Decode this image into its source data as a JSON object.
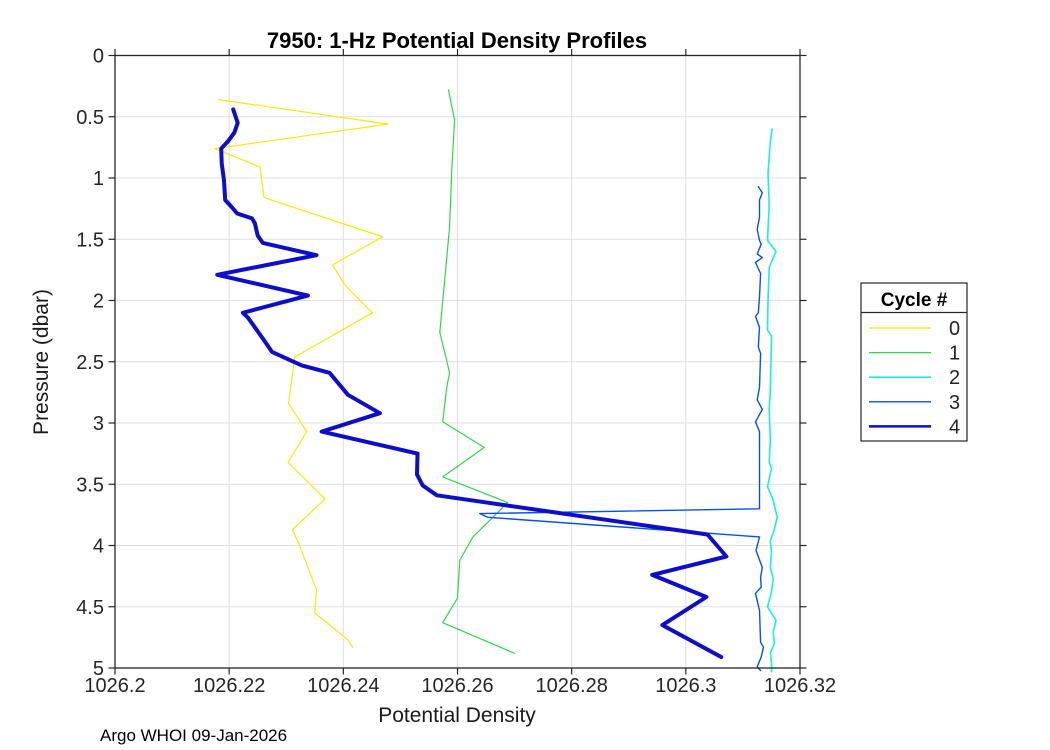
{
  "figure": {
    "footer": "Argo WHOI 09-Jan-2026"
  },
  "chart_data": {
    "type": "line",
    "title": "7950: 1-Hz Potential Density Profiles",
    "xlabel": "Potential Density",
    "ylabel": "Pressure (dbar)",
    "xlim": [
      1026.2,
      1026.32
    ],
    "ylim": [
      0,
      5
    ],
    "y_axis_reversed": true,
    "grid": true,
    "grid_color": "#e0e0e0",
    "axis_color": "#262626",
    "x_ticks": [
      {
        "value": 1026.2,
        "label": "1026.2"
      },
      {
        "value": 1026.22,
        "label": "1026.22"
      },
      {
        "value": 1026.24,
        "label": "1026.24"
      },
      {
        "value": 1026.26,
        "label": "1026.26"
      },
      {
        "value": 1026.28,
        "label": "1026.28"
      },
      {
        "value": 1026.3,
        "label": "1026.3"
      },
      {
        "value": 1026.32,
        "label": "1026.32"
      }
    ],
    "y_ticks": [
      {
        "value": 0,
        "label": "0"
      },
      {
        "value": 0.5,
        "label": "0.5"
      },
      {
        "value": 1,
        "label": "1"
      },
      {
        "value": 1.5,
        "label": "1.5"
      },
      {
        "value": 2,
        "label": "2"
      },
      {
        "value": 2.5,
        "label": "2.5"
      },
      {
        "value": 3,
        "label": "3"
      },
      {
        "value": 3.5,
        "label": "3.5"
      },
      {
        "value": 4,
        "label": "4"
      },
      {
        "value": 4.5,
        "label": "4.5"
      },
      {
        "value": 5,
        "label": "5"
      }
    ],
    "legend": {
      "title": "Cycle #",
      "position": "outside-right"
    },
    "series": [
      {
        "name": "0",
        "cycle": 0,
        "color": "#ffe60a",
        "width": 1.2,
        "points": [
          [
            1026.2182,
            0.36
          ],
          [
            1026.2478,
            0.56
          ],
          [
            1026.2175,
            0.76
          ],
          [
            1026.2254,
            0.91
          ],
          [
            1026.2261,
            1.16
          ],
          [
            1026.2469,
            1.48
          ],
          [
            1026.2381,
            1.71
          ],
          [
            1026.2404,
            1.88
          ],
          [
            1026.2451,
            2.1
          ],
          [
            1026.2315,
            2.46
          ],
          [
            1026.2304,
            2.84
          ],
          [
            1026.2336,
            3.07
          ],
          [
            1026.2303,
            3.32
          ],
          [
            1026.2368,
            3.62
          ],
          [
            1026.2311,
            3.87
          ],
          [
            1026.2324,
            4.01
          ],
          [
            1026.2353,
            4.36
          ],
          [
            1026.235,
            4.55
          ],
          [
            1026.2408,
            4.77
          ],
          [
            1026.2416,
            4.83
          ]
        ]
      },
      {
        "name": "1",
        "cycle": 1,
        "color": "#30d64f",
        "width": 1.2,
        "points": [
          [
            1026.2584,
            0.28
          ],
          [
            1026.2595,
            0.53
          ],
          [
            1026.259,
            0.93
          ],
          [
            1026.2586,
            1.41
          ],
          [
            1026.2576,
            1.91
          ],
          [
            1026.2569,
            2.26
          ],
          [
            1026.2581,
            2.49
          ],
          [
            1026.2586,
            2.59
          ],
          [
            1026.2581,
            2.71
          ],
          [
            1026.2574,
            2.99
          ],
          [
            1026.2647,
            3.2
          ],
          [
            1026.2574,
            3.44
          ],
          [
            1026.2688,
            3.65
          ],
          [
            1026.2627,
            3.93
          ],
          [
            1026.2604,
            4.12
          ],
          [
            1026.26,
            4.43
          ],
          [
            1026.2574,
            4.63
          ],
          [
            1026.27,
            4.88
          ]
        ]
      },
      {
        "name": "2",
        "cycle": 2,
        "color": "#18f0e0",
        "width": 1.6,
        "points": [
          [
            1026.3151,
            0.6
          ],
          [
            1026.3148,
            0.71
          ],
          [
            1026.3144,
            0.96
          ],
          [
            1026.3146,
            1.22
          ],
          [
            1026.3143,
            1.51
          ],
          [
            1026.3158,
            1.6
          ],
          [
            1026.3146,
            1.73
          ],
          [
            1026.3144,
            2.0
          ],
          [
            1026.3143,
            2.24
          ],
          [
            1026.315,
            2.29
          ],
          [
            1026.3148,
            2.73
          ],
          [
            1026.3146,
            2.89
          ],
          [
            1026.3148,
            3.14
          ],
          [
            1026.3146,
            3.32
          ],
          [
            1026.315,
            3.37
          ],
          [
            1026.3143,
            3.52
          ],
          [
            1026.3153,
            3.63
          ],
          [
            1026.316,
            3.77
          ],
          [
            1026.3155,
            3.87
          ],
          [
            1026.3148,
            3.96
          ],
          [
            1026.315,
            4.06
          ],
          [
            1026.3148,
            4.18
          ],
          [
            1026.3153,
            4.27
          ],
          [
            1026.315,
            4.38
          ],
          [
            1026.3143,
            4.5
          ],
          [
            1026.3158,
            4.61
          ],
          [
            1026.3153,
            4.71
          ],
          [
            1026.3155,
            4.8
          ],
          [
            1026.3148,
            4.88
          ],
          [
            1026.315,
            4.96
          ],
          [
            1026.315,
            5.03
          ]
        ]
      },
      {
        "name": "3",
        "cycle": 3,
        "color": "#0750f0",
        "width": 1.4,
        "points": [
          [
            1026.3127,
            1.07
          ],
          [
            1026.3134,
            1.12
          ],
          [
            1026.3129,
            1.18
          ],
          [
            1026.3129,
            1.32
          ],
          [
            1026.3125,
            1.42
          ],
          [
            1026.3129,
            1.51
          ],
          [
            1026.3132,
            1.54
          ],
          [
            1026.3125,
            1.62
          ],
          [
            1026.3134,
            1.65
          ],
          [
            1026.3122,
            1.69
          ],
          [
            1026.3131,
            1.78
          ],
          [
            1026.3129,
            1.97
          ],
          [
            1026.3127,
            2.1
          ],
          [
            1026.3122,
            2.13
          ],
          [
            1026.3129,
            2.22
          ],
          [
            1026.3127,
            2.38
          ],
          [
            1026.3131,
            2.43
          ],
          [
            1026.3129,
            2.71
          ],
          [
            1026.3125,
            2.81
          ],
          [
            1026.3134,
            2.89
          ],
          [
            1026.3122,
            2.99
          ],
          [
            1026.3129,
            3.07
          ],
          [
            1026.3129,
            3.41
          ],
          [
            1026.3129,
            3.7
          ],
          [
            1026.2639,
            3.74
          ],
          [
            1026.2653,
            3.77
          ],
          [
            1026.3129,
            3.93
          ],
          [
            1026.3123,
            4.04
          ],
          [
            1026.3134,
            4.18
          ],
          [
            1026.3131,
            4.26
          ],
          [
            1026.3132,
            4.34
          ],
          [
            1026.3122,
            4.39
          ],
          [
            1026.3129,
            4.53
          ],
          [
            1026.3131,
            4.79
          ],
          [
            1026.3136,
            4.83
          ],
          [
            1026.3132,
            4.91
          ],
          [
            1026.3125,
            4.99
          ],
          [
            1026.3131,
            5.02
          ]
        ]
      },
      {
        "name": "4",
        "cycle": 4,
        "color": "#0d0dcd",
        "width": 4,
        "points": [
          [
            1026.2207,
            0.44
          ],
          [
            1026.2215,
            0.55
          ],
          [
            1026.2209,
            0.63
          ],
          [
            1026.2198,
            0.7
          ],
          [
            1026.2186,
            0.76
          ],
          [
            1026.2187,
            0.88
          ],
          [
            1026.2191,
            1.02
          ],
          [
            1026.2193,
            1.18
          ],
          [
            1026.2205,
            1.24
          ],
          [
            1026.2214,
            1.29
          ],
          [
            1026.224,
            1.33
          ],
          [
            1026.2245,
            1.37
          ],
          [
            1026.225,
            1.47
          ],
          [
            1026.2259,
            1.53
          ],
          [
            1026.2353,
            1.63
          ],
          [
            1026.2179,
            1.79
          ],
          [
            1026.2338,
            1.96
          ],
          [
            1026.2224,
            2.1
          ],
          [
            1026.2233,
            2.14
          ],
          [
            1026.2259,
            2.31
          ],
          [
            1026.2275,
            2.42
          ],
          [
            1026.2327,
            2.53
          ],
          [
            1026.2376,
            2.59
          ],
          [
            1026.2408,
            2.77
          ],
          [
            1026.2464,
            2.92
          ],
          [
            1026.2362,
            3.07
          ],
          [
            1026.253,
            3.25
          ],
          [
            1026.2529,
            3.42
          ],
          [
            1026.2539,
            3.51
          ],
          [
            1026.2564,
            3.59
          ],
          [
            1026.3038,
            3.91
          ],
          [
            1026.3071,
            4.09
          ],
          [
            1026.2941,
            4.24
          ],
          [
            1026.3036,
            4.42
          ],
          [
            1026.2959,
            4.65
          ],
          [
            1026.3062,
            4.91
          ]
        ]
      }
    ]
  }
}
